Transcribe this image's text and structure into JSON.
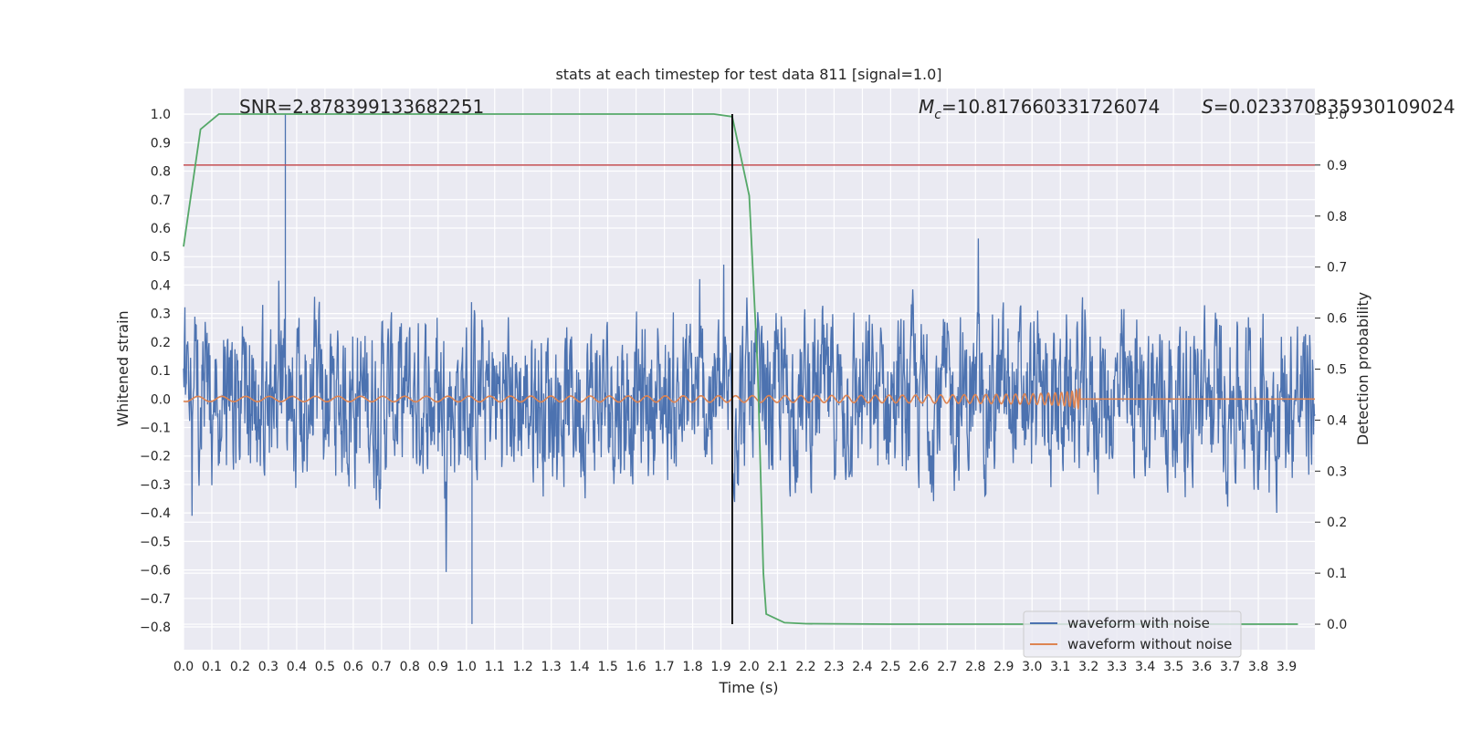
{
  "chart_data": {
    "type": "line",
    "title": "stats at each timestep for test data 811 [signal=1.0]",
    "xlabel": "Time (s)",
    "ylabel": "Whitened strain",
    "y2label": "Detection probability",
    "xlim": [
      0.0,
      4.0
    ],
    "ylim": [
      -0.88,
      1.09
    ],
    "y2lim": [
      -0.05,
      1.05
    ],
    "xticks": [
      "0.0",
      "0.1",
      "0.2",
      "0.3",
      "0.4",
      "0.5",
      "0.6",
      "0.7",
      "0.8",
      "0.9",
      "1.0",
      "1.1",
      "1.2",
      "1.3",
      "1.4",
      "1.5",
      "1.6",
      "1.7",
      "1.8",
      "1.9",
      "2.0",
      "2.1",
      "2.2",
      "2.3",
      "2.4",
      "2.5",
      "2.6",
      "2.7",
      "2.8",
      "2.9",
      "3.0",
      "3.1",
      "3.2",
      "3.3",
      "3.4",
      "3.5",
      "3.6",
      "3.7",
      "3.8",
      "3.9"
    ],
    "yticks": [
      "1.0",
      "0.9",
      "0.8",
      "0.7",
      "0.6",
      "0.5",
      "0.4",
      "0.3",
      "0.2",
      "0.1",
      "0.0",
      "−0.1",
      "−0.2",
      "−0.3",
      "−0.4",
      "−0.5",
      "−0.6",
      "−0.7",
      "−0.8"
    ],
    "y2ticks": [
      "1.0",
      "0.9",
      "0.8",
      "0.7",
      "0.6",
      "0.5",
      "0.4",
      "0.3",
      "0.2",
      "0.1",
      "0.0"
    ],
    "grid": true,
    "legend": "bottom-right",
    "annotations": {
      "snr": "SNR=2.878399133682251",
      "mc_symbol": "M",
      "mc_sub": "c",
      "mc_value": "=10.817660331726074",
      "s_symbol": "S",
      "s_value": "=0.023370835930109024"
    },
    "vertical_marker_x": 1.94,
    "threshold_y2": 0.9,
    "series": [
      {
        "name": "waveform with noise",
        "axis": "left",
        "color": "#4c72b0",
        "style": "noise",
        "amplitude_range": [
          -0.79,
          1.0
        ]
      },
      {
        "name": "waveform without noise",
        "axis": "left",
        "color": "#dd8452",
        "style": "chirp",
        "merger_time": 3.17,
        "peak_amplitude": 0.1
      },
      {
        "name": "detection probability",
        "axis": "right",
        "color": "#55a868",
        "x": [
          0.0,
          0.06,
          0.125,
          0.2,
          0.5,
          1.0,
          1.5,
          1.75,
          1.875,
          1.94,
          2.0,
          2.03,
          2.05,
          2.06,
          2.125,
          2.2,
          2.5,
          3.0,
          3.5,
          3.94
        ],
        "y": [
          0.74,
          0.97,
          1.0,
          1.0,
          1.0,
          1.0,
          1.0,
          1.0,
          1.0,
          0.995,
          0.84,
          0.5,
          0.1,
          0.02,
          0.003,
          0.001,
          0.0,
          0.0,
          0.0,
          0.0
        ]
      }
    ]
  }
}
